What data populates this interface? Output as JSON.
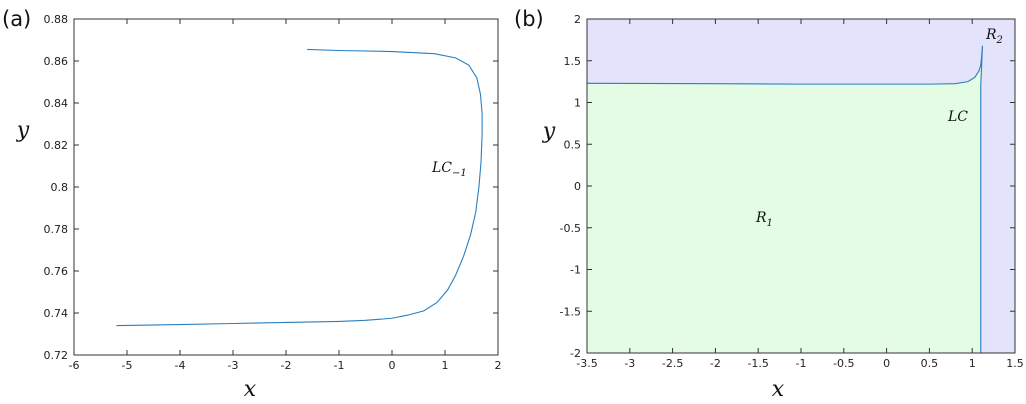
{
  "chart_data": [
    {
      "type": "line",
      "panel_label": "(a)",
      "xlabel": "x",
      "ylabel": "y",
      "xlim": [
        -6,
        2
      ],
      "ylim": [
        0.72,
        0.88
      ],
      "xticks": [
        "-6",
        "-5",
        "-4",
        "-3",
        "-2",
        "-1",
        "0",
        "1",
        "2"
      ],
      "yticks": [
        "0.72",
        "0.74",
        "0.76",
        "0.78",
        "0.8",
        "0.82",
        "0.84",
        "0.86",
        "0.88"
      ],
      "grid": false,
      "line_color": "#2a7fc1",
      "annotation": {
        "base": "LC",
        "sub": "−1"
      },
      "series": [
        {
          "x": [
            -1.6,
            -1.0,
            0.0,
            0.8,
            1.2,
            1.45,
            1.6,
            1.67,
            1.7,
            1.7,
            1.68,
            1.64,
            1.58,
            1.48,
            1.35,
            1.2,
            1.05,
            0.85,
            0.6,
            0.3,
            0.0,
            -0.5,
            -1.0,
            -2.0,
            -3.0,
            -4.0,
            -5.2
          ],
          "y": [
            0.8655,
            0.865,
            0.8645,
            0.8635,
            0.8615,
            0.858,
            0.852,
            0.844,
            0.835,
            0.825,
            0.812,
            0.8,
            0.788,
            0.777,
            0.767,
            0.758,
            0.751,
            0.745,
            0.741,
            0.739,
            0.7375,
            0.7365,
            0.736,
            0.7355,
            0.735,
            0.7345,
            0.734
          ]
        }
      ]
    },
    {
      "type": "area",
      "panel_label": "(b)",
      "xlabel": "x",
      "ylabel": "y",
      "xlim": [
        -3.5,
        1.5
      ],
      "ylim": [
        -2,
        2
      ],
      "xticks": [
        "-3.5",
        "-3",
        "-2.5",
        "-2",
        "-1.5",
        "-1",
        "-0.5",
        "0",
        "0.5",
        "1",
        "1.5"
      ],
      "yticks": [
        "-2",
        "-1.5",
        "-1",
        "-0.5",
        "0",
        "0.5",
        "1",
        "1.5",
        "2"
      ],
      "grid": false,
      "line_color": "#2a7fc1",
      "region_colors": {
        "R1": "#e4fbe4",
        "R2": "#e3e3fb"
      },
      "annotations": {
        "LC": "LC",
        "R1": {
          "base": "R",
          "sub": "1"
        },
        "R2": {
          "base": "R",
          "sub": "2"
        }
      },
      "series": [
        {
          "x": [
            -3.5,
            -2.0,
            -1.0,
            0.0,
            0.5,
            0.8,
            0.95,
            1.03,
            1.08,
            1.1,
            1.11,
            1.115,
            1.12,
            1.1,
            1.1
          ],
          "y": [
            1.23,
            1.225,
            1.22,
            1.22,
            1.22,
            1.225,
            1.25,
            1.3,
            1.38,
            1.45,
            1.55,
            1.62,
            1.68,
            1.2,
            -2.0
          ]
        }
      ]
    }
  ]
}
